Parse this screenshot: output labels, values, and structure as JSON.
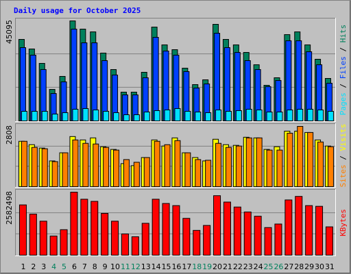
{
  "title": "Daily usage for October 2025",
  "separator": "/",
  "chart_data": [
    {
      "type": "bar",
      "ylim": [
        0,
        45095
      ],
      "yticks": [
        45095
      ],
      "grid": true,
      "series": [
        {
          "name": "Hits",
          "color": "#00805c",
          "values": [
            36750,
            32430,
            25940,
            14200,
            20070,
            45095,
            41390,
            40150,
            30580,
            23160,
            12970,
            12970,
            21930,
            42310,
            34280,
            32120,
            23780,
            16370,
            18530,
            43550,
            36750,
            34280,
            30880,
            25320,
            16060,
            19460,
            38910,
            40150,
            34280,
            27800,
            19150
          ]
        },
        {
          "name": "Files",
          "color": "#0040ff",
          "values": [
            33050,
            29650,
            23160,
            12350,
            17600,
            41390,
            35210,
            35210,
            27180,
            20690,
            11740,
            11740,
            19460,
            37680,
            31500,
            29650,
            22240,
            14820,
            16680,
            39530,
            33050,
            30880,
            27180,
            23160,
            15440,
            18220,
            36130,
            36130,
            31190,
            25320,
            16990
          ]
        },
        {
          "name": "Pages",
          "color": "#00e0ff",
          "values": [
            4326,
            4326,
            4326,
            3090,
            3708,
            5253,
            5562,
            4944,
            4326,
            3708,
            2781,
            2781,
            4017,
            4635,
            4944,
            5562,
            4326,
            4017,
            3708,
            4944,
            4326,
            4635,
            5253,
            4944,
            4017,
            4017,
            4944,
            5253,
            5253,
            4944,
            4326
          ]
        }
      ]
    },
    {
      "type": "bar",
      "ylim": [
        0,
        2808
      ],
      "yticks": [
        2808
      ],
      "grid": true,
      "series": [
        {
          "name": "Visits",
          "color": "#ffff00",
          "values": [
            2114,
            1956,
            1798,
            1199,
            1578,
            2335,
            2177,
            2272,
            1861,
            1735,
            1073,
            978,
            1357,
            2177,
            1893,
            2272,
            1578,
            1357,
            1199,
            2209,
            1956,
            1925,
            2303,
            2272,
            1735,
            1861,
            2587,
            2587,
            2524,
            2177,
            1893
          ]
        },
        {
          "name": "Sites",
          "color": "#ff8000",
          "values": [
            2114,
            1830,
            1767,
            1167,
            1578,
            2177,
            2019,
            1988,
            1830,
            1704,
            1262,
            1136,
            1357,
            2114,
            1956,
            2145,
            1578,
            1262,
            1230,
            2019,
            1830,
            1893,
            2272,
            2272,
            1704,
            1704,
            2492,
            2808,
            2524,
            2082,
            1861
          ]
        }
      ]
    },
    {
      "type": "bar",
      "ylim": [
        0,
        2582498
      ],
      "yticks": [
        2582498
      ],
      "grid": true,
      "categories": [
        "1",
        "2",
        "3",
        "4",
        "5",
        "6",
        "7",
        "8",
        "9",
        "10",
        "11",
        "12",
        "13",
        "14",
        "15",
        "16",
        "17",
        "18",
        "19",
        "20",
        "21",
        "22",
        "23",
        "24",
        "25",
        "26",
        "27",
        "28",
        "29",
        "30",
        "31"
      ],
      "category_colors": [
        "#000000",
        "#000000",
        "#000000",
        "#00805c",
        "#00805c",
        "#000000",
        "#000000",
        "#000000",
        "#000000",
        "#000000",
        "#00805c",
        "#00805c",
        "#000000",
        "#000000",
        "#000000",
        "#000000",
        "#000000",
        "#00805c",
        "#00805c",
        "#000000",
        "#000000",
        "#000000",
        "#000000",
        "#000000",
        "#00805c",
        "#00805c",
        "#000000",
        "#000000",
        "#000000",
        "#000000",
        "#000000"
      ],
      "series": [
        {
          "name": "KBytes",
          "color": "#ff0000",
          "values": [
            2060207,
            1682986,
            1392816,
            783459,
            1044612,
            2582498,
            2292343,
            2205292,
            1712003,
            1392816,
            870510,
            754442,
            1305765,
            2292343,
            2118241,
            2031190,
            1508884,
            1015595,
            1218714,
            2437428,
            2176275,
            1973156,
            1770037,
            1595935,
            1131663,
            1276748,
            2263326,
            2408411,
            2031190,
            2002173,
            1160680
          ]
        }
      ]
    }
  ]
}
